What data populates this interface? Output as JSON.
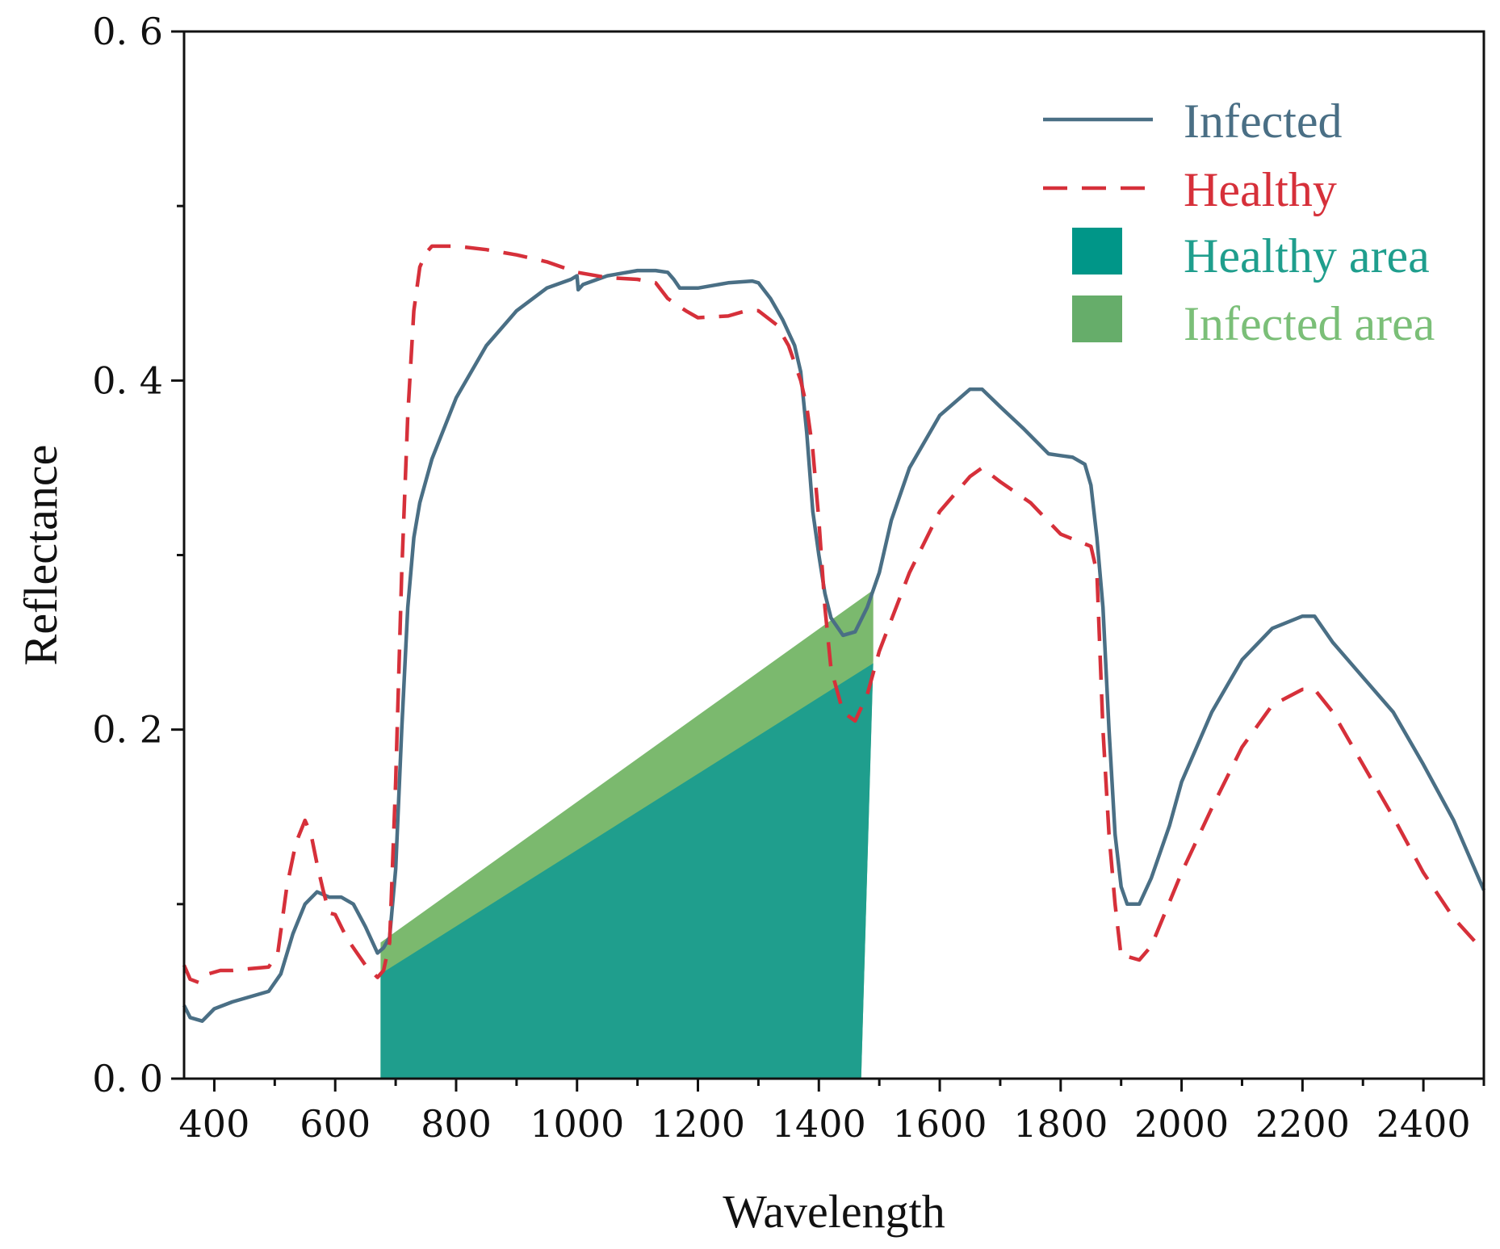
{
  "chart_data": {
    "type": "line",
    "title": "",
    "xlabel": "Wavelength",
    "ylabel": "Reflectance",
    "xlim": [
      350,
      2500
    ],
    "ylim": [
      0,
      0.6
    ],
    "x_ticks": [
      400,
      600,
      800,
      1000,
      1200,
      1400,
      1600,
      1800,
      2000,
      2200,
      2400
    ],
    "x_minor_step": 100,
    "y_ticks": [
      0.0,
      0.2,
      0.4,
      0.6
    ],
    "y_minor_step": 0.1,
    "y_tick_labels": [
      "0. 0",
      "0. 2",
      "0. 4",
      "0. 6"
    ],
    "legend_position": "top-right",
    "series": [
      {
        "name": "Infected",
        "style": "solid",
        "color": "#4a6f85",
        "x": [
          350,
          360,
          380,
          400,
          430,
          460,
          490,
          510,
          530,
          550,
          570,
          590,
          610,
          630,
          650,
          670,
          680,
          690,
          700,
          710,
          720,
          730,
          740,
          760,
          800,
          850,
          900,
          950,
          990,
          1000,
          1002,
          1010,
          1050,
          1100,
          1130,
          1150,
          1160,
          1170,
          1200,
          1250,
          1290,
          1300,
          1320,
          1340,
          1360,
          1370,
          1380,
          1390,
          1400,
          1410,
          1420,
          1440,
          1460,
          1480,
          1500,
          1520,
          1550,
          1600,
          1650,
          1670,
          1700,
          1740,
          1780,
          1800,
          1820,
          1840,
          1850,
          1860,
          1870,
          1880,
          1890,
          1900,
          1910,
          1930,
          1950,
          1980,
          2000,
          2050,
          2100,
          2150,
          2200,
          2220,
          2250,
          2300,
          2350,
          2400,
          2450,
          2500
        ],
        "values": [
          0.042,
          0.035,
          0.033,
          0.04,
          0.044,
          0.047,
          0.05,
          0.06,
          0.083,
          0.1,
          0.107,
          0.104,
          0.104,
          0.1,
          0.087,
          0.072,
          0.075,
          0.081,
          0.12,
          0.2,
          0.27,
          0.31,
          0.33,
          0.355,
          0.39,
          0.42,
          0.44,
          0.453,
          0.458,
          0.46,
          0.452,
          0.455,
          0.46,
          0.463,
          0.463,
          0.462,
          0.458,
          0.453,
          0.453,
          0.456,
          0.457,
          0.456,
          0.447,
          0.435,
          0.42,
          0.405,
          0.37,
          0.325,
          0.3,
          0.278,
          0.264,
          0.254,
          0.256,
          0.27,
          0.29,
          0.32,
          0.35,
          0.38,
          0.395,
          0.395,
          0.385,
          0.372,
          0.358,
          0.357,
          0.356,
          0.352,
          0.34,
          0.31,
          0.27,
          0.2,
          0.14,
          0.11,
          0.1,
          0.1,
          0.115,
          0.145,
          0.17,
          0.21,
          0.24,
          0.258,
          0.265,
          0.265,
          0.25,
          0.23,
          0.21,
          0.18,
          0.148,
          0.108
        ]
      },
      {
        "name": "Healthy",
        "style": "dashed",
        "color": "#d6303a",
        "x": [
          350,
          360,
          375,
          390,
          410,
          430,
          460,
          490,
          505,
          520,
          535,
          550,
          560,
          570,
          580,
          590,
          600,
          620,
          650,
          670,
          680,
          690,
          700,
          710,
          720,
          730,
          740,
          750,
          760,
          800,
          850,
          900,
          950,
          1000,
          1050,
          1100,
          1130,
          1150,
          1180,
          1200,
          1250,
          1280,
          1300,
          1330,
          1350,
          1370,
          1380,
          1390,
          1400,
          1410,
          1420,
          1440,
          1460,
          1480,
          1500,
          1550,
          1600,
          1650,
          1670,
          1700,
          1750,
          1800,
          1850,
          1860,
          1870,
          1880,
          1890,
          1900,
          1910,
          1930,
          1950,
          2000,
          2050,
          2100,
          2150,
          2200,
          2220,
          2250,
          2300,
          2350,
          2400,
          2450,
          2500
        ],
        "values": [
          0.065,
          0.057,
          0.055,
          0.06,
          0.062,
          0.062,
          0.063,
          0.064,
          0.072,
          0.11,
          0.135,
          0.148,
          0.14,
          0.123,
          0.108,
          0.095,
          0.094,
          0.08,
          0.065,
          0.058,
          0.062,
          0.078,
          0.17,
          0.29,
          0.38,
          0.44,
          0.465,
          0.473,
          0.477,
          0.477,
          0.475,
          0.472,
          0.468,
          0.462,
          0.459,
          0.458,
          0.456,
          0.447,
          0.44,
          0.436,
          0.437,
          0.44,
          0.44,
          0.432,
          0.42,
          0.4,
          0.385,
          0.36,
          0.32,
          0.27,
          0.235,
          0.21,
          0.205,
          0.22,
          0.245,
          0.29,
          0.325,
          0.345,
          0.35,
          0.342,
          0.33,
          0.312,
          0.305,
          0.29,
          0.2,
          0.14,
          0.1,
          0.07,
          0.07,
          0.068,
          0.076,
          0.118,
          0.155,
          0.19,
          0.214,
          0.223,
          0.223,
          0.21,
          0.18,
          0.15,
          0.118,
          0.092,
          0.073
        ]
      }
    ],
    "areas": [
      {
        "name": "Infected area",
        "color": "#7bb96e",
        "polygon": [
          [
            675,
            0.0
          ],
          [
            675,
            0.078
          ],
          [
            1490,
            0.28
          ],
          [
            1490,
            0.24
          ],
          [
            1470,
            0.0
          ]
        ]
      },
      {
        "name": "Healthy area",
        "color": "#1f9e8d",
        "polygon": [
          [
            675,
            0.0
          ],
          [
            675,
            0.06
          ],
          [
            1490,
            0.238
          ],
          [
            1470,
            0.0
          ]
        ]
      }
    ],
    "legend": [
      {
        "label": "Infected",
        "kind": "line-solid",
        "color": "#4a6f85",
        "text_color": "#4a6f85"
      },
      {
        "label": "Healthy",
        "kind": "line-dashed",
        "color": "#d6303a",
        "text_color": "#d6303a"
      },
      {
        "label": "Healthy area",
        "kind": "patch",
        "color": "#009688",
        "text_color": "#1f9e8d"
      },
      {
        "label": "Infected area",
        "kind": "patch",
        "color": "#66ad6a",
        "text_color": "#7bbf78"
      }
    ]
  }
}
